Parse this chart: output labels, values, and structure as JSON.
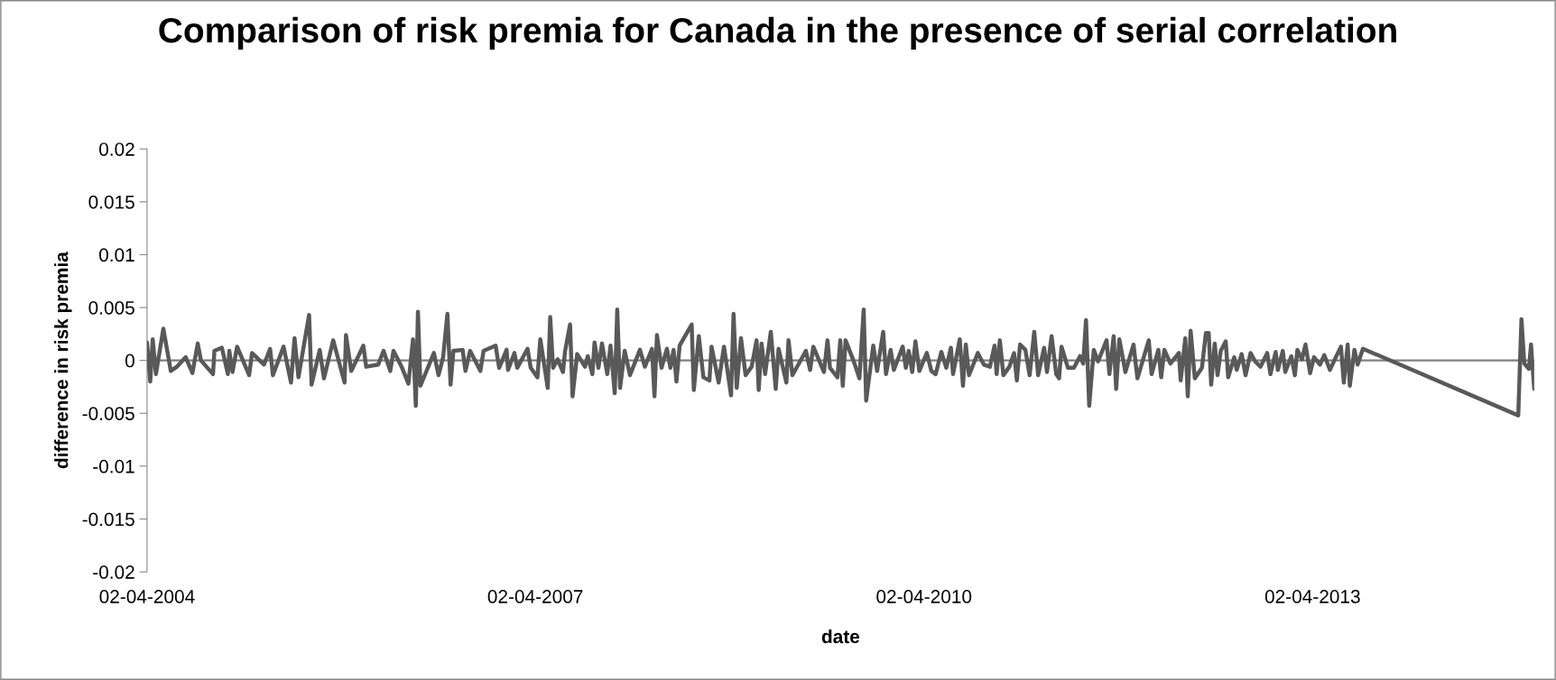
{
  "chart_data": {
    "type": "line",
    "title": "Comparison of risk premia for Canada in the presence of serial correlation",
    "xlabel": "date",
    "ylabel": "difference in risk premia",
    "x": [
      "2004-04-02",
      "2004-04-11",
      "2004-04-18",
      "2004-04-27",
      "2004-05-18",
      "2004-06-08",
      "2004-06-25",
      "2004-07-20",
      "2004-08-08",
      "2004-08-23",
      "2004-09-01",
      "2004-10-05",
      "2004-10-09",
      "2004-10-30",
      "2004-11-16",
      "2004-11-20",
      "2004-11-29",
      "2004-12-12",
      "2005-01-15",
      "2005-01-23",
      "2005-02-26",
      "2005-03-15",
      "2005-03-23",
      "2005-04-22",
      "2005-05-13",
      "2005-05-23",
      "2005-06-03",
      "2005-07-03",
      "2005-07-10",
      "2005-08-02",
      "2005-08-14",
      "2005-09-09",
      "2005-10-11",
      "2005-10-15",
      "2005-10-30",
      "2005-12-03",
      "2005-12-11",
      "2006-01-14",
      "2006-01-29",
      "2006-02-17",
      "2006-02-26",
      "2006-03-21",
      "2006-04-09",
      "2006-04-22",
      "2006-04-30",
      "2006-05-06",
      "2006-05-13",
      "2006-06-20",
      "2006-07-03",
      "2006-07-16",
      "2006-07-28",
      "2006-08-06",
      "2006-08-14",
      "2006-09-09",
      "2006-09-17",
      "2006-09-30",
      "2006-10-29",
      "2006-11-07",
      "2006-12-11",
      "2006-12-21",
      "2007-01-11",
      "2007-01-15",
      "2007-02-02",
      "2007-02-10",
      "2007-03-11",
      "2007-03-20",
      "2007-04-08",
      "2007-04-16",
      "2007-05-07",
      "2007-05-14",
      "2007-05-22",
      "2007-06-04",
      "2007-06-19",
      "2007-06-25",
      "2007-07-09",
      "2007-07-16",
      "2007-07-29",
      "2007-08-20",
      "2007-08-28",
      "2007-09-10",
      "2007-09-16",
      "2007-09-27",
      "2007-10-07",
      "2007-10-22",
      "2007-10-31",
      "2007-11-12",
      "2007-11-19",
      "2007-11-27",
      "2007-12-10",
      "2007-12-25",
      "2008-01-22",
      "2008-02-05",
      "2008-02-25",
      "2008-03-03",
      "2008-03-10",
      "2008-03-23",
      "2008-04-07",
      "2008-04-17",
      "2008-04-26",
      "2008-05-04",
      "2008-05-13",
      "2008-06-16",
      "2008-06-22",
      "2008-07-06",
      "2008-07-19",
      "2008-08-05",
      "2008-08-11",
      "2008-08-31",
      "2008-09-15",
      "2008-10-05",
      "2008-10-12",
      "2008-10-21",
      "2008-11-02",
      "2008-11-15",
      "2008-12-02",
      "2008-12-16",
      "2008-12-22",
      "2008-12-30",
      "2009-01-09",
      "2009-01-25",
      "2009-02-08",
      "2009-02-16",
      "2009-03-10",
      "2009-03-16",
      "2009-03-27",
      "2009-05-04",
      "2009-05-16",
      "2009-05-25",
      "2009-06-24",
      "2009-07-04",
      "2009-07-11",
      "2009-08-01",
      "2009-08-09",
      "2009-08-16",
      "2009-08-24",
      "2009-09-15",
      "2009-10-02",
      "2009-10-14",
      "2009-10-21",
      "2009-11-10",
      "2009-11-21",
      "2009-12-08",
      "2009-12-16",
      "2009-12-29",
      "2010-01-07",
      "2010-02-01",
      "2010-02-10",
      "2010-02-18",
      "2010-02-28",
      "2010-03-09",
      "2010-03-20",
      "2010-04-10",
      "2010-04-23",
      "2010-05-05",
      "2010-05-21",
      "2010-06-04",
      "2010-06-17",
      "2010-06-23",
      "2010-07-12",
      "2010-07-21",
      "2010-07-29",
      "2010-08-07",
      "2010-09-01",
      "2010-09-18",
      "2010-10-05",
      "2010-10-18",
      "2010-10-24",
      "2010-11-02",
      "2010-11-12",
      "2010-11-29",
      "2010-12-12",
      "2010-12-20",
      "2010-12-29",
      "2011-01-13",
      "2011-01-25",
      "2011-02-07",
      "2011-02-18",
      "2011-03-07",
      "2011-03-15",
      "2011-03-28",
      "2011-04-10",
      "2011-04-18",
      "2011-04-25",
      "2011-05-13",
      "2011-05-30",
      "2011-06-16",
      "2011-06-25",
      "2011-07-03",
      "2011-07-12",
      "2011-07-25",
      "2011-08-06",
      "2011-08-30",
      "2011-09-07",
      "2011-09-19",
      "2011-09-26",
      "2011-10-05",
      "2011-10-22",
      "2011-11-14",
      "2011-11-25",
      "2011-12-27",
      "2012-01-04",
      "2012-01-23",
      "2012-01-31",
      "2012-02-09",
      "2012-02-26",
      "2012-03-21",
      "2012-03-26",
      "2012-04-08",
      "2012-04-15",
      "2012-04-23",
      "2012-05-05",
      "2012-05-25",
      "2012-06-05",
      "2012-06-13",
      "2012-06-20",
      "2012-06-30",
      "2012-07-08",
      "2012-07-17",
      "2012-07-31",
      "2012-08-07",
      "2012-08-24",
      "2012-08-31",
      "2012-09-14",
      "2012-09-25",
      "2012-10-09",
      "2012-10-22",
      "2012-11-06",
      "2012-11-25",
      "2012-12-04",
      "2012-12-19",
      "2012-12-25",
      "2013-01-08",
      "2013-01-15",
      "2013-02-01",
      "2013-02-11",
      "2013-02-18",
      "2013-03-03",
      "2013-03-13",
      "2013-03-26",
      "2013-04-06",
      "2013-04-23",
      "2013-05-05",
      "2013-05-21",
      "2013-06-08",
      "2013-06-21",
      "2013-06-29",
      "2013-07-10",
      "2013-07-16",
      "2013-07-29",
      "2013-08-07",
      "2013-08-22",
      "2014-11-03",
      "2014-11-12",
      "2014-11-20",
      "2014-12-03",
      "2014-12-09",
      "2014-12-18"
    ],
    "series": [
      {
        "color": "#595959",
        "values": [
          0.0017,
          -0.002,
          0.002,
          -0.0013,
          0.003,
          -0.001,
          -0.0006,
          0.0003,
          -0.0012,
          0.0016,
          0,
          -0.0013,
          0.0009,
          0.0012,
          -0.0013,
          0.0009,
          -0.0011,
          0.0013,
          -0.0014,
          0.0007,
          -0.0004,
          0.0011,
          -0.0014,
          0.0013,
          -0.0021,
          0.0021,
          -0.0016,
          0.0043,
          -0.0023,
          0.001,
          -0.0017,
          0.0019,
          -0.0021,
          0.0024,
          -0.001,
          0.0014,
          -0.0006,
          -0.0004,
          0.0009,
          -0.001,
          0.0009,
          -0.0006,
          -0.0022,
          0.002,
          -0.0043,
          0.0046,
          -0.0024,
          0.0007,
          -0.0014,
          0.0003,
          0.0044,
          -0.0023,
          0.0009,
          0.001,
          -0.001,
          0.0009,
          -0.001,
          0.0009,
          0.0014,
          -0.0007,
          0.001,
          -0.0009,
          0.0007,
          -0.0007,
          0.0011,
          -0.0007,
          -0.0016,
          0.002,
          -0.0026,
          0.0041,
          -0.0007,
          0.0001,
          -0.0011,
          0.0009,
          0.0034,
          -0.0034,
          0.0006,
          -0.0006,
          0.0004,
          -0.0013,
          0.0017,
          -0.0007,
          0.0016,
          -0.0013,
          0.0014,
          -0.0031,
          0.0048,
          -0.0026,
          0.0009,
          -0.0014,
          0.001,
          -0.0006,
          0.0011,
          -0.0034,
          0.0024,
          -0.0007,
          0.0011,
          -0.0007,
          0.001,
          -0.002,
          0.0014,
          0.0034,
          -0.0028,
          0.0023,
          -0.0016,
          -0.0019,
          0.0013,
          -0.0021,
          0.0013,
          -0.0033,
          0.0044,
          -0.0026,
          0.0021,
          -0.0014,
          -0.0006,
          0.0019,
          -0.0028,
          0.0016,
          -0.0013,
          0.0027,
          -0.0027,
          0.0011,
          -0.0021,
          0.0019,
          -0.0014,
          0.0009,
          -0.0009,
          0.0013,
          -0.0011,
          0.0019,
          -0.0007,
          -0.0016,
          0.0019,
          -0.0024,
          0.0019,
          0,
          -0.0017,
          0.0048,
          -0.0038,
          0.0014,
          -0.001,
          0.0027,
          -0.0013,
          0.001,
          -0.0009,
          0.0013,
          -0.0007,
          0.0009,
          -0.0011,
          0.0018,
          -0.001,
          0.0007,
          -0.001,
          -0.0013,
          0.0008,
          -0.0007,
          0.0012,
          -0.0013,
          0.002,
          -0.0024,
          0.0015,
          -0.0014,
          0.0007,
          -0.0004,
          -0.0006,
          0.0014,
          -0.0013,
          0.0019,
          -0.0014,
          -0.0006,
          0.0007,
          -0.0019,
          0.0015,
          0.001,
          -0.0014,
          0.0027,
          -0.0014,
          0.0012,
          -0.0011,
          0.0023,
          -0.0013,
          -0.0017,
          0.0013,
          -0.0007,
          -0.0007,
          0.0004,
          -0.0003,
          0.0038,
          -0.0043,
          0.001,
          -0.0001,
          0.0019,
          -0.0013,
          0.0023,
          -0.0027,
          0.002,
          -0.0011,
          0.0015,
          -0.0017,
          0.0019,
          -0.0013,
          0.001,
          -0.0016,
          0.001,
          -0.0003,
          0.0007,
          -0.0019,
          0.0021,
          -0.0034,
          0.0028,
          -0.0017,
          -0.0007,
          0.0026,
          0.0026,
          -0.0023,
          0.0016,
          -0.0014,
          0.0009,
          0.0018,
          -0.0016,
          0.0003,
          -0.0009,
          0.0006,
          -0.0014,
          0.0007,
          -0.0001,
          -0.0006,
          0.0007,
          -0.0013,
          0.0008,
          -0.0009,
          0.0009,
          -0.0011,
          0.0004,
          -0.0014,
          0.001,
          0.0001,
          0.0015,
          -0.0012,
          0.0003,
          -0.0004,
          0.0005,
          -0.0009,
          0.0004,
          0.0013,
          -0.0021,
          0.0015,
          -0.0024,
          0.001,
          -0.0004,
          0.0011,
          -0.0052,
          0.0039,
          -0.0003,
          -0.0008,
          0.0015,
          -0.0027
        ]
      }
    ],
    "xlim": [
      "2004-04-02",
      "2014-12-18"
    ],
    "xticks": [
      {
        "value": "2004-04-02",
        "label": "02-04-2004"
      },
      {
        "value": "2007-04-02",
        "label": "02-04-2007"
      },
      {
        "value": "2010-04-02",
        "label": "02-04-2010"
      },
      {
        "value": "2013-04-02",
        "label": "02-04-2013"
      }
    ],
    "ylim": [
      -0.02,
      0.02
    ],
    "yticks": [
      -0.02,
      -0.015,
      -0.01,
      -0.005,
      0,
      0.005,
      0.01,
      0.015,
      0.02
    ],
    "ref_lines": [
      {
        "axis": "y",
        "value": 0,
        "color": "#7f7f7f"
      }
    ],
    "grid": false,
    "marker": "none",
    "line_style": "solid"
  }
}
